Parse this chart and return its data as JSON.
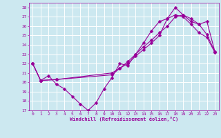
{
  "xlabel": "Windchill (Refroidissement éolien,°C)",
  "bg_color": "#cce8f0",
  "line_color": "#990099",
  "grid_color": "#ffffff",
  "xlim": [
    -0.5,
    23.5
  ],
  "ylim": [
    17,
    28.5
  ],
  "yticks": [
    17,
    18,
    19,
    20,
    21,
    22,
    23,
    24,
    25,
    26,
    27,
    28
  ],
  "xticks": [
    0,
    1,
    2,
    3,
    4,
    5,
    6,
    7,
    8,
    9,
    10,
    11,
    12,
    13,
    14,
    15,
    16,
    17,
    18,
    19,
    20,
    21,
    22,
    23
  ],
  "curve1_x": [
    0,
    1,
    2,
    3,
    4,
    5,
    6,
    7,
    8,
    9,
    10,
    11,
    12,
    13,
    14,
    15,
    16,
    17,
    18,
    19,
    20,
    21,
    22,
    23
  ],
  "curve1_y": [
    22,
    20.2,
    20.7,
    19.8,
    19.3,
    18.5,
    17.7,
    17.0,
    17.8,
    19.3,
    20.5,
    22.0,
    21.8,
    23.0,
    24.2,
    25.5,
    26.5,
    26.8,
    28.0,
    27.2,
    26.5,
    26.2,
    25.1,
    23.3
  ],
  "curve2_x": [
    0,
    1,
    3,
    10,
    11,
    12,
    13,
    14,
    15,
    16,
    17,
    18,
    19,
    20,
    21,
    22,
    23
  ],
  "curve2_y": [
    22,
    20.2,
    20.3,
    21.0,
    21.5,
    22.0,
    22.8,
    23.5,
    24.2,
    25.0,
    26.8,
    27.2,
    27.0,
    26.2,
    25.3,
    24.8,
    23.2
  ],
  "curve3_x": [
    0,
    1,
    3,
    10,
    11,
    12,
    13,
    14,
    15,
    16,
    17,
    18,
    19,
    20,
    21,
    22,
    23
  ],
  "curve3_y": [
    22,
    20.2,
    20.3,
    20.8,
    21.5,
    22.2,
    23.0,
    23.8,
    24.5,
    25.3,
    26.0,
    27.0,
    27.2,
    26.8,
    26.2,
    26.5,
    23.3
  ]
}
